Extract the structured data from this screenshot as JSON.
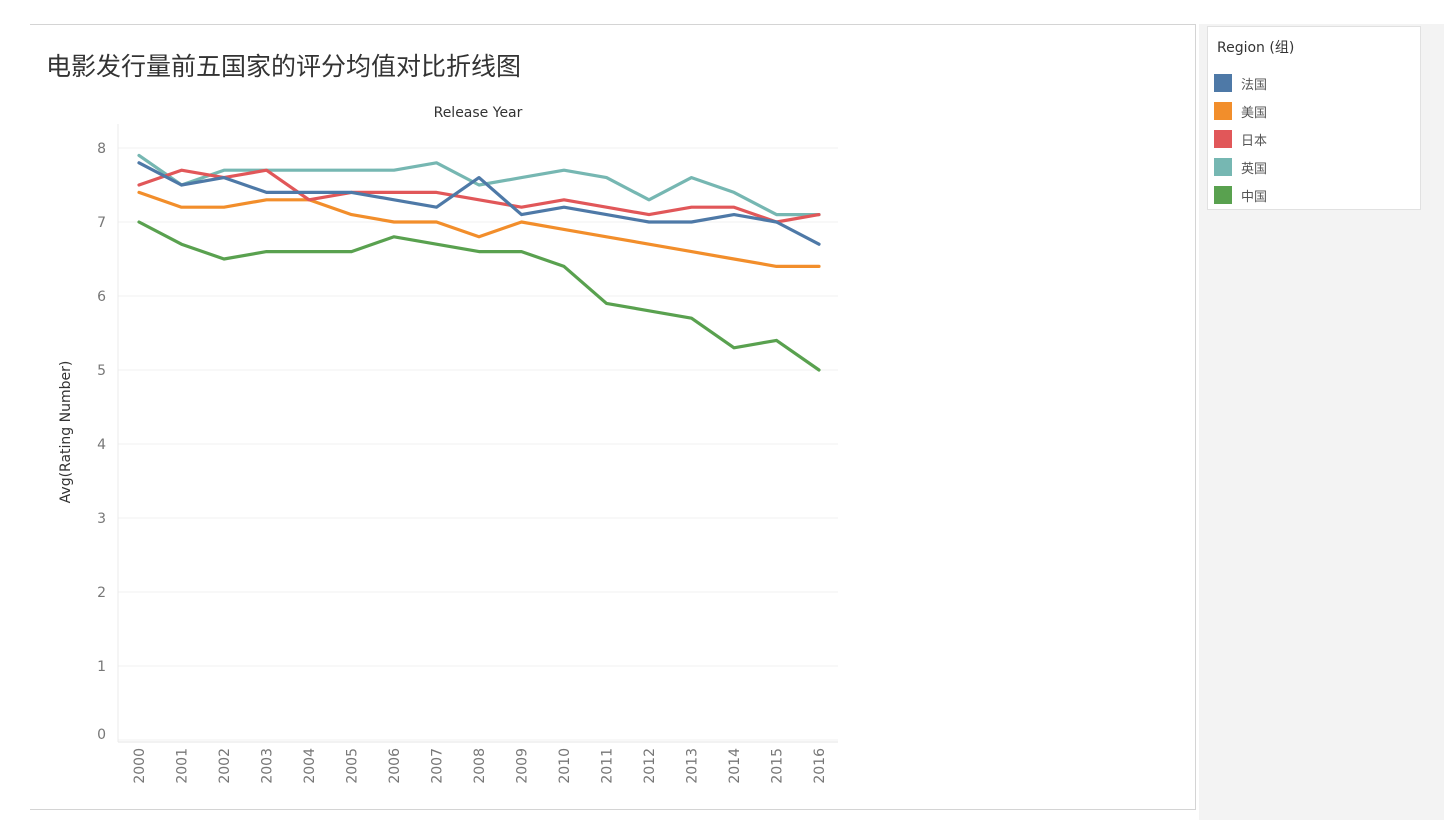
{
  "colors": {
    "france": "#4e79a7",
    "usa": "#f28e2b",
    "japan": "#e15759",
    "uk": "#76b7b2",
    "china": "#59a14f"
  },
  "legend": {
    "title": "Region (组)",
    "items": [
      {
        "label": "法国",
        "color": "#4e79a7"
      },
      {
        "label": "美国",
        "color": "#f28e2b"
      },
      {
        "label": "日本",
        "color": "#e15759"
      },
      {
        "label": "英国",
        "color": "#76b7b2"
      },
      {
        "label": "中国",
        "color": "#59a14f"
      }
    ]
  },
  "chart_data": {
    "type": "line",
    "title": "电影发行量前五国家的评分均值对比折线图",
    "xlabel": "Release Year",
    "ylabel": "Avg(Rating Number)",
    "ylim": [
      0,
      8.3
    ],
    "yticks": [
      0,
      1,
      2,
      3,
      4,
      5,
      6,
      7,
      8
    ],
    "grid": true,
    "legend_position": "right",
    "categories": [
      "2000",
      "2001",
      "2002",
      "2003",
      "2004",
      "2005",
      "2006",
      "2007",
      "2008",
      "2009",
      "2010",
      "2011",
      "2012",
      "2013",
      "2014",
      "2015",
      "2016"
    ],
    "series": [
      {
        "name": "英国",
        "color": "#76b7b2",
        "values": [
          7.9,
          7.5,
          7.7,
          7.7,
          7.7,
          7.7,
          7.7,
          7.8,
          7.5,
          7.6,
          7.7,
          7.6,
          7.3,
          7.6,
          7.4,
          7.1,
          7.1
        ]
      },
      {
        "name": "美国",
        "color": "#f28e2b",
        "values": [
          7.4,
          7.2,
          7.2,
          7.3,
          7.3,
          7.1,
          7.0,
          7.0,
          6.8,
          7.0,
          6.9,
          6.8,
          6.7,
          6.6,
          6.5,
          6.4,
          6.4
        ]
      },
      {
        "name": "中国",
        "color": "#59a14f",
        "values": [
          7.0,
          6.7,
          6.5,
          6.6,
          6.6,
          6.6,
          6.8,
          6.7,
          6.6,
          6.6,
          6.4,
          5.9,
          5.8,
          5.7,
          5.3,
          5.4,
          5.0
        ]
      },
      {
        "name": "日本",
        "color": "#e15759",
        "values": [
          7.5,
          7.7,
          7.6,
          7.7,
          7.3,
          7.4,
          7.4,
          7.4,
          7.3,
          7.2,
          7.3,
          7.2,
          7.1,
          7.2,
          7.2,
          7.0,
          7.1
        ]
      },
      {
        "name": "法国",
        "color": "#4e79a7",
        "values": [
          7.8,
          7.5,
          7.6,
          7.4,
          7.4,
          7.4,
          7.3,
          7.2,
          7.6,
          7.1,
          7.2,
          7.1,
          7.0,
          7.0,
          7.1,
          7.0,
          6.7
        ]
      }
    ]
  }
}
